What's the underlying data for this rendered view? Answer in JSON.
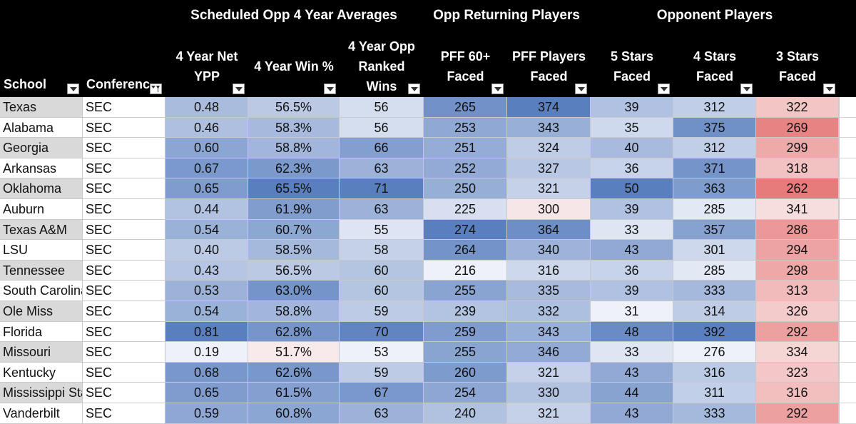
{
  "header_groups": {
    "scheduled": "Scheduled Opp 4 Year Averages",
    "returning": "Opp Returning Players",
    "opponent": "Opponent Players"
  },
  "columns": [
    {
      "key": "school",
      "label_lines": [
        "School"
      ],
      "filter_icon": "dropdown-arrow"
    },
    {
      "key": "conference",
      "label_lines": [
        "Conferenc"
      ],
      "filter_icon": "filter-dropdown"
    },
    {
      "key": "net_ypp",
      "label_lines": [
        "4 Year Net",
        "YPP"
      ],
      "filter_icon": "dropdown-arrow"
    },
    {
      "key": "win_pct",
      "label_lines": [
        "4 Year Win %"
      ],
      "filter_icon": "dropdown-arrow"
    },
    {
      "key": "ranked_wins",
      "label_lines": [
        "4  Year Opp",
        "Ranked",
        "Wins"
      ],
      "filter_icon": "dropdown-arrow"
    },
    {
      "key": "pff60",
      "label_lines": [
        "PFF 60+",
        "Faced"
      ],
      "filter_icon": "dropdown-arrow"
    },
    {
      "key": "pff_players",
      "label_lines": [
        "PFF Players",
        "Faced"
      ],
      "filter_icon": "dropdown-arrow"
    },
    {
      "key": "stars5",
      "label_lines": [
        "5 Stars",
        "Faced"
      ],
      "filter_icon": "dropdown-arrow"
    },
    {
      "key": "stars4",
      "label_lines": [
        "4 Stars",
        "Faced"
      ],
      "filter_icon": "dropdown-arrow"
    },
    {
      "key": "stars3",
      "label_lines": [
        "3 Stars",
        "Faced"
      ],
      "filter_icon": "dropdown-arrow"
    }
  ],
  "rows": [
    [
      "Texas",
      "SEC",
      "0.48",
      "56.5%",
      "56",
      "265",
      "374",
      "39",
      "312",
      "322"
    ],
    [
      "Alabama",
      "SEC",
      "0.46",
      "58.3%",
      "56",
      "253",
      "343",
      "35",
      "375",
      "269"
    ],
    [
      "Georgia",
      "SEC",
      "0.60",
      "58.8%",
      "66",
      "251",
      "324",
      "40",
      "312",
      "299"
    ],
    [
      "Arkansas",
      "SEC",
      "0.67",
      "62.3%",
      "63",
      "252",
      "327",
      "36",
      "371",
      "318"
    ],
    [
      "Oklahoma",
      "SEC",
      "0.65",
      "65.5%",
      "71",
      "250",
      "321",
      "50",
      "363",
      "262"
    ],
    [
      "Auburn",
      "SEC",
      "0.44",
      "61.9%",
      "63",
      "225",
      "300",
      "39",
      "285",
      "341"
    ],
    [
      "Texas A&M",
      "SEC",
      "0.54",
      "60.7%",
      "55",
      "274",
      "364",
      "33",
      "357",
      "286"
    ],
    [
      "LSU",
      "SEC",
      "0.40",
      "58.5%",
      "58",
      "264",
      "340",
      "43",
      "301",
      "294"
    ],
    [
      "Tennessee",
      "SEC",
      "0.43",
      "56.5%",
      "60",
      "216",
      "316",
      "36",
      "285",
      "298"
    ],
    [
      "South Carolina",
      "SEC",
      "0.53",
      "63.0%",
      "60",
      "255",
      "335",
      "39",
      "333",
      "313"
    ],
    [
      "Ole Miss",
      "SEC",
      "0.54",
      "58.8%",
      "59",
      "239",
      "332",
      "31",
      "314",
      "326"
    ],
    [
      "Florida",
      "SEC",
      "0.81",
      "62.8%",
      "70",
      "259",
      "343",
      "48",
      "392",
      "292"
    ],
    [
      "Missouri",
      "SEC",
      "0.19",
      "51.7%",
      "53",
      "255",
      "346",
      "33",
      "276",
      "334"
    ],
    [
      "Kentucky",
      "SEC",
      "0.68",
      "62.6%",
      "59",
      "260",
      "321",
      "43",
      "316",
      "323"
    ],
    [
      "Mississippi State",
      "SEC",
      "0.65",
      "61.5%",
      "67",
      "254",
      "330",
      "44",
      "311",
      "316"
    ],
    [
      "Vanderbilt",
      "SEC",
      "0.59",
      "60.8%",
      "63",
      "240",
      "321",
      "43",
      "333",
      "292"
    ]
  ],
  "colors": {
    "header_bg": "#000000",
    "header_text": "#ffffff",
    "scale_blue_high": "#5a7fbf",
    "scale_blue_low": "#eef1f9",
    "scale_pink_low": "#e77a7a",
    "scale_pink_high": "#f7dede",
    "school_band_gray": "#d9d9d9",
    "grid_line": "#c9c9c9"
  }
}
